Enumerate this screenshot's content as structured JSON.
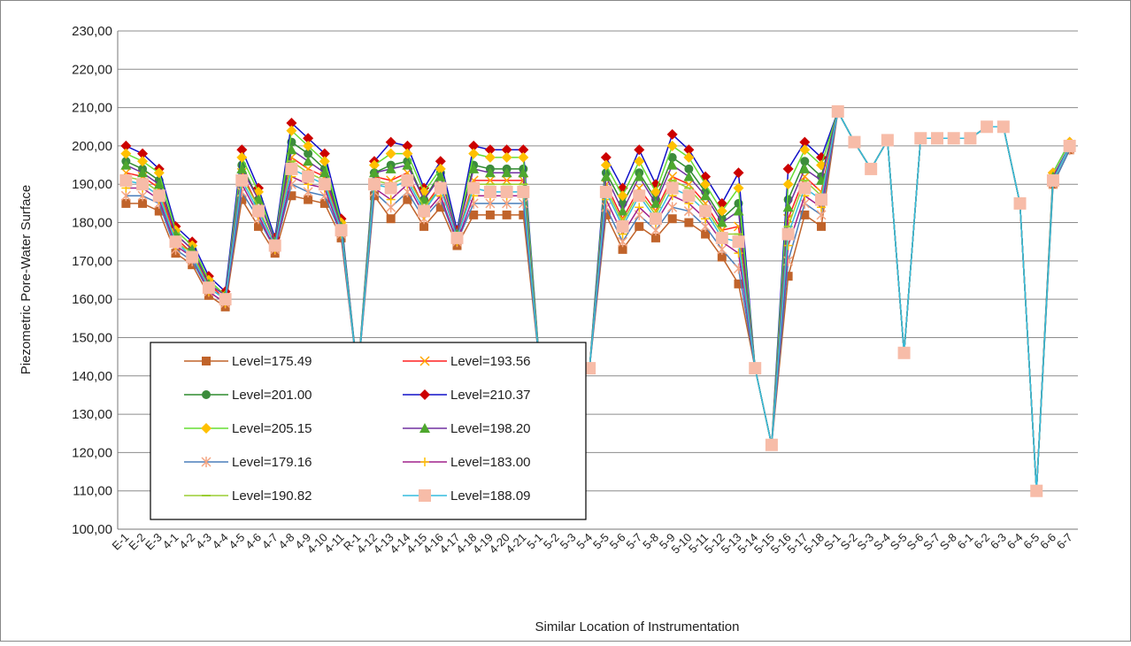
{
  "chart_data": {
    "type": "line",
    "x_label": "Similar Location of Instrumentation",
    "y_label": "Piezometric Pore-Water Surface",
    "categories": [
      "E-1",
      "E-2",
      "E-3",
      "4-1",
      "4-2",
      "4-3",
      "4-4",
      "4-5",
      "4-6",
      "4-7",
      "4-8",
      "4-9",
      "4-10",
      "4-11",
      "R-1",
      "4-12",
      "4-13",
      "4-14",
      "4-15",
      "4-16",
      "4-17",
      "4-18",
      "4-19",
      "4-20",
      "4-21",
      "5-1",
      "5-2",
      "5-3",
      "5-4",
      "5-5",
      "5-6",
      "5-7",
      "5-8",
      "5-9",
      "5-10",
      "5-11",
      "5-12",
      "5-13",
      "5-14",
      "5-15",
      "5-16",
      "5-17",
      "5-18",
      "S-1",
      "S-2",
      "S-3",
      "S-4",
      "S-5",
      "S-6",
      "S-7",
      "S-8",
      "6-1",
      "6-2",
      "6-3",
      "6-4",
      "6-5",
      "6-6",
      "6-7"
    ],
    "ylim": [
      100,
      230
    ],
    "yticks": [
      {
        "value": 100,
        "label": "100,00"
      },
      {
        "value": 110,
        "label": "110,00"
      },
      {
        "value": 120,
        "label": "120,00"
      },
      {
        "value": 130,
        "label": "130,00"
      },
      {
        "value": 140,
        "label": "140,00"
      },
      {
        "value": 150,
        "label": "150,00"
      },
      {
        "value": 160,
        "label": "160,00"
      },
      {
        "value": 170,
        "label": "170,00"
      },
      {
        "value": 180,
        "label": "180,00"
      },
      {
        "value": 190,
        "label": "190,00"
      },
      {
        "value": 200,
        "label": "200,00"
      },
      {
        "value": 210,
        "label": "210,00"
      },
      {
        "value": 220,
        "label": "220,00"
      },
      {
        "value": 230,
        "label": "230,00"
      }
    ],
    "grid": true,
    "series": [
      {
        "name": "Level=175.49",
        "color": "#c0632a",
        "marker": "square",
        "marker_color": "#c0632a",
        "values": [
          185,
          185,
          183,
          172,
          169,
          161,
          158,
          186,
          179,
          172,
          187,
          186,
          185,
          176,
          140,
          187,
          181,
          186,
          179,
          184,
          174,
          182,
          182,
          182,
          182,
          142,
          142,
          142,
          142,
          182,
          173,
          179,
          176,
          181,
          180,
          177,
          171,
          164,
          142,
          122,
          166,
          182,
          179,
          209,
          201,
          194,
          201.5,
          146,
          202,
          202,
          202,
          202,
          205,
          205,
          185,
          110,
          190,
          199
        ]
      },
      {
        "name": "Level=193.56",
        "color": "#ff2020",
        "marker": "x",
        "marker_color": "#ffa500",
        "values": [
          193,
          192,
          189,
          176,
          172,
          164,
          160,
          193,
          184,
          174,
          197,
          194,
          192,
          179,
          140,
          192,
          191,
          193,
          184,
          190,
          176,
          191,
          191,
          191,
          191,
          142,
          142,
          142,
          142,
          190,
          181,
          189,
          183,
          192,
          190,
          185,
          178,
          179,
          142,
          122,
          181,
          192,
          188,
          209,
          201,
          194,
          201.5,
          146,
          202,
          202,
          202,
          202,
          205,
          205,
          185,
          110,
          192,
          200
        ]
      },
      {
        "name": "Level=201.00",
        "color": "#2e8b2e",
        "marker": "circle",
        "marker_color": "#3c8c3c",
        "values": [
          196,
          194,
          191,
          177,
          173,
          165,
          161,
          195,
          186,
          175,
          201,
          198,
          194,
          180,
          140,
          193,
          195,
          196,
          186,
          193,
          177,
          195,
          194,
          194,
          194,
          142,
          142,
          142,
          142,
          193,
          185,
          193,
          186,
          197,
          194,
          188,
          181,
          185,
          142,
          122,
          186,
          196,
          192,
          209,
          201,
          194,
          201.5,
          146,
          202,
          202,
          202,
          202,
          205,
          205,
          185,
          110,
          192,
          200
        ]
      },
      {
        "name": "Level=210.37",
        "color": "#1010c8",
        "marker": "diamond",
        "marker_color": "#cc0000",
        "values": [
          200,
          198,
          194,
          179,
          175,
          166,
          162,
          199,
          189,
          176,
          206,
          202,
          198,
          181,
          140,
          196,
          201,
          200,
          189,
          196,
          178,
          200,
          199,
          199,
          199,
          142,
          142,
          142,
          142,
          197,
          189,
          199,
          190,
          203,
          199,
          192,
          185,
          193,
          142,
          122,
          194,
          201,
          197,
          209,
          201,
          194,
          201.5,
          146,
          202,
          202,
          202,
          202,
          205,
          205,
          185,
          110,
          193,
          201
        ]
      },
      {
        "name": "Level=205.15",
        "color": "#66dd33",
        "marker": "diamond",
        "marker_color": "#ffc000",
        "values": [
          198,
          196,
          193,
          178,
          174,
          165,
          161,
          197,
          188,
          175,
          204,
          200,
          196,
          180,
          140,
          195,
          198,
          198,
          188,
          194,
          177,
          198,
          197,
          197,
          197,
          142,
          142,
          142,
          142,
          195,
          187,
          196,
          188,
          200,
          197,
          190,
          183,
          189,
          142,
          122,
          190,
          199,
          195,
          209,
          201,
          194,
          201.5,
          146,
          202,
          202,
          202,
          202,
          205,
          205,
          185,
          110,
          193,
          201
        ]
      },
      {
        "name": "Level=198.20",
        "color": "#7030a0",
        "marker": "triangle",
        "marker_color": "#4ea72e",
        "values": [
          195,
          193,
          190,
          177,
          173,
          164,
          161,
          194,
          186,
          175,
          199,
          196,
          193,
          179,
          140,
          193,
          194,
          195,
          186,
          192,
          177,
          194,
          193,
          193,
          193,
          142,
          142,
          142,
          142,
          192,
          183,
          192,
          185,
          195,
          192,
          187,
          180,
          183,
          142,
          122,
          184,
          194,
          191,
          209,
          201,
          194,
          201.5,
          146,
          202,
          202,
          202,
          202,
          205,
          205,
          185,
          110,
          192,
          200
        ]
      },
      {
        "name": "Level=179.16",
        "color": "#4a7ebb",
        "marker": "star",
        "marker_color": "#f4a582",
        "values": [
          187,
          187,
          185,
          173,
          170,
          162,
          159,
          188,
          181,
          173,
          190,
          188,
          187,
          177,
          140,
          188,
          184,
          188,
          181,
          186,
          175,
          185,
          185,
          185,
          185,
          142,
          142,
          142,
          142,
          184,
          175,
          182,
          178,
          184,
          183,
          179,
          173,
          168,
          142,
          122,
          170,
          185,
          182,
          209,
          201,
          194,
          201.5,
          146,
          202,
          202,
          202,
          202,
          205,
          205,
          185,
          110,
          190,
          199
        ]
      },
      {
        "name": "Level=183.00",
        "color": "#a0208c",
        "marker": "plus",
        "marker_color": "#ffc000",
        "values": [
          189,
          189,
          186,
          174,
          171,
          162,
          159,
          190,
          182,
          173,
          192,
          190,
          189,
          177,
          140,
          189,
          186,
          190,
          182,
          187,
          175,
          187,
          187,
          187,
          187,
          142,
          142,
          142,
          142,
          186,
          177,
          184,
          180,
          187,
          185,
          181,
          175,
          172,
          142,
          122,
          174,
          187,
          184,
          209,
          201,
          194,
          201.5,
          146,
          202,
          202,
          202,
          202,
          205,
          205,
          185,
          110,
          191,
          200
        ]
      },
      {
        "name": "Level=190.82",
        "color": "#9acd32",
        "marker": "dash",
        "marker_color": "#9acd32",
        "values": [
          192,
          191,
          188,
          175,
          172,
          163,
          160,
          192,
          184,
          174,
          196,
          193,
          191,
          178,
          140,
          191,
          190,
          192,
          184,
          189,
          176,
          190,
          190,
          190,
          190,
          142,
          142,
          142,
          142,
          189,
          180,
          188,
          182,
          191,
          189,
          184,
          177,
          177,
          142,
          122,
          179,
          191,
          187,
          209,
          201,
          194,
          201.5,
          146,
          202,
          202,
          202,
          202,
          205,
          205,
          185,
          110,
          191,
          200
        ]
      },
      {
        "name": "Level=188.09",
        "color": "#33bbdd",
        "marker": "bigsquare",
        "marker_color": "#f7bca8",
        "values": [
          191,
          190,
          187,
          175,
          171,
          163,
          160,
          191,
          183,
          174,
          194,
          192,
          190,
          178,
          140,
          190,
          189,
          191,
          183,
          189,
          176,
          189,
          188,
          188,
          188,
          142,
          142,
          142,
          142,
          188,
          179,
          187,
          181,
          189,
          187,
          183,
          176,
          175,
          142,
          122,
          177,
          189,
          186,
          209,
          201,
          194,
          201.5,
          146,
          202,
          202,
          202,
          202,
          205,
          205,
          185,
          110,
          191,
          200
        ]
      }
    ]
  }
}
